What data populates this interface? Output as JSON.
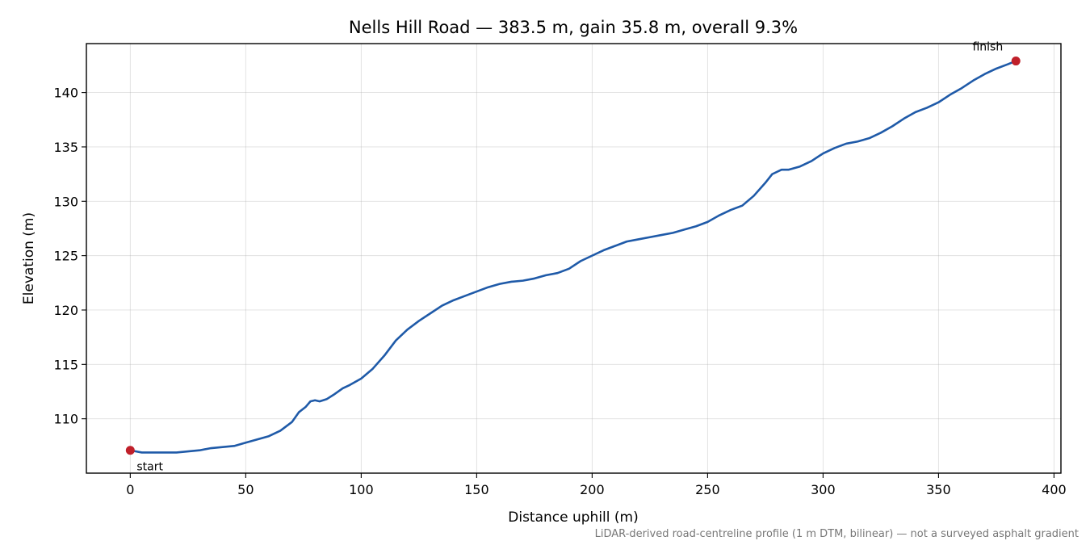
{
  "chart_data": {
    "type": "line",
    "title": "Nells Hill Road — 383.5 m, gain 35.8 m, overall 9.3%",
    "xlabel": "Distance uphill (m)",
    "ylabel": "Elevation (m)",
    "xlim": [
      -19,
      403
    ],
    "ylim": [
      105,
      144.5
    ],
    "xticks": [
      0,
      50,
      100,
      150,
      200,
      250,
      300,
      350,
      400
    ],
    "yticks": [
      110,
      115,
      120,
      125,
      130,
      135,
      140
    ],
    "xtick_labels": [
      "0",
      "50",
      "100",
      "150",
      "200",
      "250",
      "300",
      "350",
      "400"
    ],
    "ytick_labels": [
      "110",
      "115",
      "120",
      "125",
      "130",
      "135",
      "140"
    ],
    "grid": true,
    "line_color": "#1f5aa8",
    "marker_color": "#c0202a",
    "series": [
      {
        "x": [
          0,
          5,
          10,
          15,
          20,
          25,
          30,
          35,
          40,
          45,
          50,
          55,
          60,
          65,
          70,
          73,
          76,
          78,
          80,
          82,
          85,
          88,
          92,
          95,
          100,
          105,
          110,
          115,
          120,
          125,
          130,
          135,
          140,
          145,
          150,
          155,
          160,
          165,
          170,
          175,
          180,
          185,
          190,
          195,
          200,
          205,
          210,
          215,
          220,
          225,
          230,
          235,
          240,
          245,
          250,
          255,
          260,
          265,
          270,
          275,
          278,
          282,
          285,
          290,
          295,
          300,
          305,
          310,
          315,
          320,
          325,
          330,
          335,
          340,
          345,
          350,
          355,
          360,
          365,
          370,
          375,
          380,
          383.5
        ],
        "y": [
          107.1,
          106.9,
          106.9,
          106.9,
          106.9,
          107.0,
          107.1,
          107.3,
          107.4,
          107.5,
          107.8,
          108.1,
          108.4,
          108.9,
          109.7,
          110.6,
          111.1,
          111.6,
          111.7,
          111.6,
          111.8,
          112.2,
          112.8,
          113.1,
          113.7,
          114.6,
          115.8,
          117.2,
          118.2,
          119.0,
          119.7,
          120.4,
          120.9,
          121.3,
          121.7,
          122.1,
          122.4,
          122.6,
          122.7,
          122.9,
          123.2,
          123.4,
          123.8,
          124.5,
          125.0,
          125.5,
          125.9,
          126.3,
          126.5,
          126.7,
          126.9,
          127.1,
          127.4,
          127.7,
          128.1,
          128.7,
          129.2,
          129.6,
          130.5,
          131.7,
          132.5,
          132.9,
          132.9,
          133.2,
          133.7,
          134.4,
          134.9,
          135.3,
          135.5,
          135.8,
          136.3,
          136.9,
          137.6,
          138.2,
          138.6,
          139.1,
          139.8,
          140.4,
          141.1,
          141.7,
          142.2,
          142.6,
          142.9
        ]
      }
    ],
    "annotations": [
      {
        "text": "start",
        "x": 0,
        "y": 107.1
      },
      {
        "text": "finish",
        "x": 383.5,
        "y": 142.9
      }
    ],
    "footnote": "LiDAR-derived road-centreline profile (1 m DTM, bilinear) — not a surveyed asphalt gradient"
  }
}
